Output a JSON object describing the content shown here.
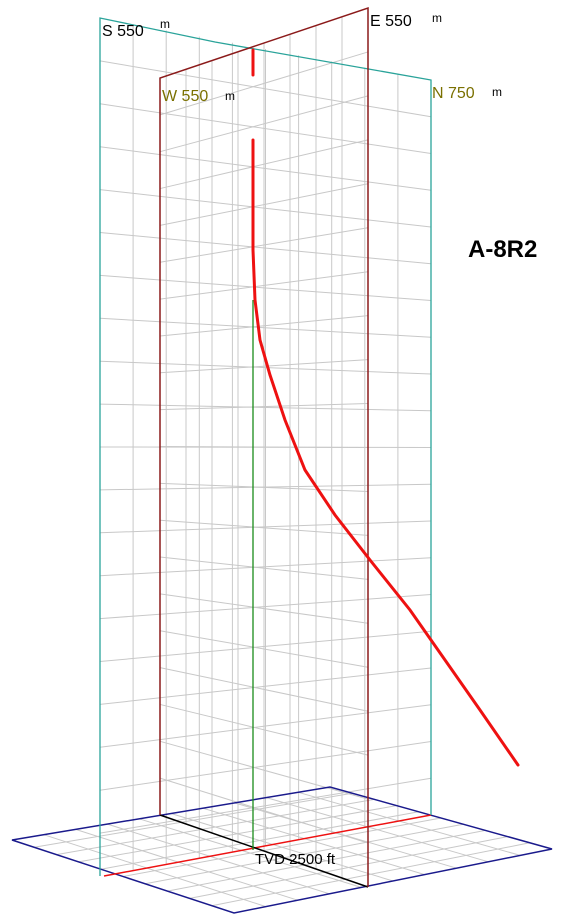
{
  "well_name": "A-8R2",
  "labels": {
    "south": {
      "text": "S 550",
      "unit": "m"
    },
    "east": {
      "text": "E 550",
      "unit": "m"
    },
    "west": {
      "text": "W 550",
      "unit": "m"
    },
    "north": {
      "text": "N 750",
      "unit": "m"
    },
    "tvd": {
      "text": "TVD 2500 ft"
    }
  },
  "colors": {
    "trajectory": "#ee1111",
    "south_north_plane": "#2aa39a",
    "west_east_plane": "#8b1a1a",
    "vertical_axis": "#1a8c1a",
    "base_frame": "#1a1a8c",
    "grid": "#c8c8c8",
    "label_ns_we": "#7a7000"
  }
}
